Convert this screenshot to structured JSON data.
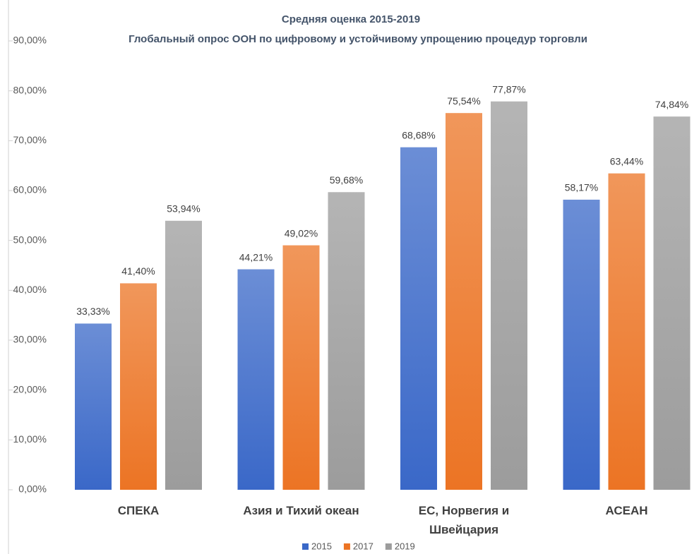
{
  "chart_data": {
    "type": "bar",
    "title": "Средняя оценка 2015-2019",
    "subtitle": "Глобальный опрос ООН по цифровому и устойчивому упрощению процедур торговли",
    "categories": [
      "СПЕКА",
      "Азия и Тихий океан",
      "ЕС, Норвегия и Швейцария",
      "АСЕАН"
    ],
    "series": [
      {
        "name": "2015",
        "color": "#3a68c8",
        "values": [
          33.33,
          44.21,
          68.68,
          58.17
        ],
        "value_labels": [
          "33,33%",
          "44,21%",
          "68,68%",
          "58,17%"
        ]
      },
      {
        "name": "2017",
        "color": "#ec7424",
        "values": [
          41.4,
          49.02,
          75.54,
          63.44
        ],
        "value_labels": [
          "41,40%",
          "49,02%",
          "75,54%",
          "63,44%"
        ]
      },
      {
        "name": "2019",
        "color": "#9c9c9c",
        "values": [
          53.94,
          59.68,
          77.87,
          74.84
        ],
        "value_labels": [
          "53,94%",
          "59,68%",
          "77,87%",
          "74,84%"
        ]
      }
    ],
    "ylim": [
      0,
      90
    ],
    "yticks": [
      {
        "value": 0,
        "label": "0,00%"
      },
      {
        "value": 10,
        "label": "10,00%"
      },
      {
        "value": 20,
        "label": "20,00%"
      },
      {
        "value": 30,
        "label": "30,00%"
      },
      {
        "value": 40,
        "label": "40,00%"
      },
      {
        "value": 50,
        "label": "50,00%"
      },
      {
        "value": 60,
        "label": "60,00%"
      },
      {
        "value": 70,
        "label": "70,00%"
      },
      {
        "value": 80,
        "label": "80,00%"
      },
      {
        "value": 90,
        "label": "90,00%"
      }
    ],
    "grid": false,
    "legend": "bottom"
  }
}
